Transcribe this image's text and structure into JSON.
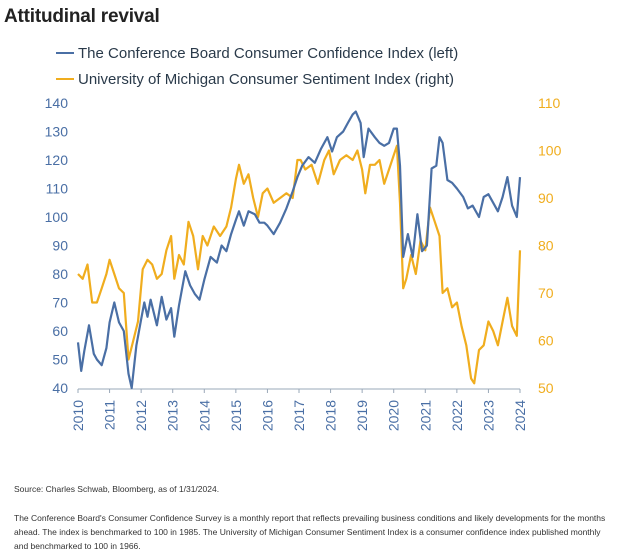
{
  "title": "Attitudinal revival",
  "source": "Source: Charles Schwab, Bloomberg, as of 1/31/2024.",
  "note": "The Conference Board's Consumer Confidence Survey is a monthly report that reflects prevailing business conditions and likely developments for the months ahead. The index is benchmarked to 100 in 1985. The University of Michigan Consumer Sentiment Index is a consumer confidence index published monthly and benchmarked to 100 in 1966.",
  "colors": {
    "left_series": "#4a6fa5",
    "right_series": "#f0ad1e",
    "left_axis": "#4a6fa5",
    "right_axis": "#f0ad1e",
    "x_axis": "#4a6fa5"
  },
  "chart_data": {
    "type": "line",
    "x_ticks": [
      "2010",
      "2011",
      "2012",
      "2013",
      "2014",
      "2015",
      "2016",
      "2017",
      "2018",
      "2019",
      "2020",
      "2021",
      "2022",
      "2023",
      "2024"
    ],
    "left_axis": {
      "ylim": [
        40,
        140
      ],
      "ticks": [
        "40",
        "50",
        "60",
        "70",
        "80",
        "90",
        "100",
        "110",
        "120",
        "130",
        "140"
      ]
    },
    "right_axis": {
      "ylim": [
        50,
        110
      ],
      "ticks": [
        "50",
        "60",
        "70",
        "80",
        "90",
        "100",
        "110"
      ]
    },
    "legend_position": "top-left",
    "grid": false,
    "series": [
      {
        "name": "The Conference Board Consumer Confidence Index (left)",
        "axis": "left",
        "x": [
          2010.0,
          2010.1,
          2010.2,
          2010.35,
          2010.5,
          2010.6,
          2010.75,
          2010.9,
          2011.0,
          2011.15,
          2011.3,
          2011.45,
          2011.6,
          2011.7,
          2011.85,
          2012.0,
          2012.1,
          2012.2,
          2012.3,
          2012.5,
          2012.65,
          2012.8,
          2012.95,
          2013.05,
          2013.2,
          2013.4,
          2013.55,
          2013.7,
          2013.85,
          2014.0,
          2014.2,
          2014.4,
          2014.55,
          2014.7,
          2014.85,
          2015.0,
          2015.1,
          2015.25,
          2015.4,
          2015.6,
          2015.75,
          2015.9,
          2016.0,
          2016.2,
          2016.4,
          2016.6,
          2016.8,
          2016.95,
          2017.1,
          2017.3,
          2017.5,
          2017.7,
          2017.9,
          2018.05,
          2018.2,
          2018.4,
          2018.55,
          2018.7,
          2018.8,
          2018.95,
          2019.05,
          2019.2,
          2019.4,
          2019.55,
          2019.7,
          2019.85,
          2020.0,
          2020.1,
          2020.2,
          2020.3,
          2020.45,
          2020.6,
          2020.75,
          2020.9,
          2021.05,
          2021.2,
          2021.35,
          2021.45,
          2021.55,
          2021.7,
          2021.85,
          2022.0,
          2022.2,
          2022.35,
          2022.5,
          2022.7,
          2022.85,
          2023.0,
          2023.15,
          2023.3,
          2023.45,
          2023.6,
          2023.75,
          2023.9,
          2024.0
        ],
        "values": [
          56,
          46,
          53,
          62,
          52,
          50,
          48,
          54,
          63,
          70,
          63,
          60,
          45,
          40,
          55,
          64,
          70,
          65,
          71,
          62,
          72,
          64,
          68,
          58,
          69,
          81,
          76,
          73,
          71,
          78,
          86,
          84,
          90,
          88,
          94,
          99,
          102,
          97,
          102,
          101,
          98,
          98,
          97,
          94,
          98,
          103,
          109,
          114,
          118,
          121,
          119,
          124,
          128,
          123,
          128,
          130,
          133,
          136,
          137,
          133,
          121,
          131,
          128,
          126,
          125,
          126,
          131,
          131,
          118,
          86,
          94,
          86,
          101,
          88,
          90,
          117,
          118,
          128,
          126,
          113,
          112,
          110,
          107,
          103,
          104,
          100,
          107,
          108,
          105,
          102,
          107,
          114,
          104,
          100,
          114
        ]
      },
      {
        "name": "University of Michigan Consumer Sentiment Index (right)",
        "axis": "right",
        "x": [
          2010.0,
          2010.15,
          2010.3,
          2010.45,
          2010.6,
          2010.75,
          2010.9,
          2011.0,
          2011.15,
          2011.3,
          2011.45,
          2011.6,
          2011.75,
          2011.9,
          2012.05,
          2012.2,
          2012.35,
          2012.5,
          2012.65,
          2012.8,
          2012.95,
          2013.05,
          2013.2,
          2013.35,
          2013.5,
          2013.65,
          2013.8,
          2013.95,
          2014.1,
          2014.3,
          2014.5,
          2014.7,
          2014.85,
          2015.0,
          2015.1,
          2015.25,
          2015.4,
          2015.55,
          2015.7,
          2015.85,
          2016.0,
          2016.2,
          2016.4,
          2016.6,
          2016.8,
          2016.95,
          2017.05,
          2017.2,
          2017.4,
          2017.6,
          2017.8,
          2017.95,
          2018.1,
          2018.3,
          2018.5,
          2018.7,
          2018.85,
          2019.0,
          2019.1,
          2019.25,
          2019.4,
          2019.55,
          2019.7,
          2019.85,
          2020.0,
          2020.1,
          2020.2,
          2020.3,
          2020.4,
          2020.55,
          2020.7,
          2020.85,
          2021.0,
          2021.15,
          2021.3,
          2021.45,
          2021.55,
          2021.7,
          2021.85,
          2022.0,
          2022.15,
          2022.3,
          2022.45,
          2022.55,
          2022.7,
          2022.85,
          2023.0,
          2023.15,
          2023.3,
          2023.45,
          2023.6,
          2023.75,
          2023.9,
          2024.0
        ],
        "values": [
          74,
          73,
          76,
          68,
          68,
          71,
          74,
          77,
          74,
          71,
          70,
          56,
          60,
          64,
          75,
          77,
          76,
          73,
          74,
          79,
          82,
          73,
          78,
          76,
          85,
          82,
          75,
          82,
          80,
          84,
          82,
          84,
          88,
          94,
          97,
          93,
          95,
          90,
          86,
          91,
          92,
          89,
          90,
          91,
          90,
          98,
          98,
          96,
          97,
          93,
          98,
          100,
          95,
          98,
          99,
          98,
          100,
          96,
          91,
          97,
          97,
          98,
          93,
          96,
          99,
          101,
          89,
          71,
          73,
          78,
          74,
          81,
          79,
          88,
          85,
          82,
          70,
          71,
          67,
          68,
          63,
          59,
          52,
          51,
          58,
          59,
          64,
          62,
          59,
          64,
          69,
          63,
          61,
          79
        ]
      }
    ]
  }
}
